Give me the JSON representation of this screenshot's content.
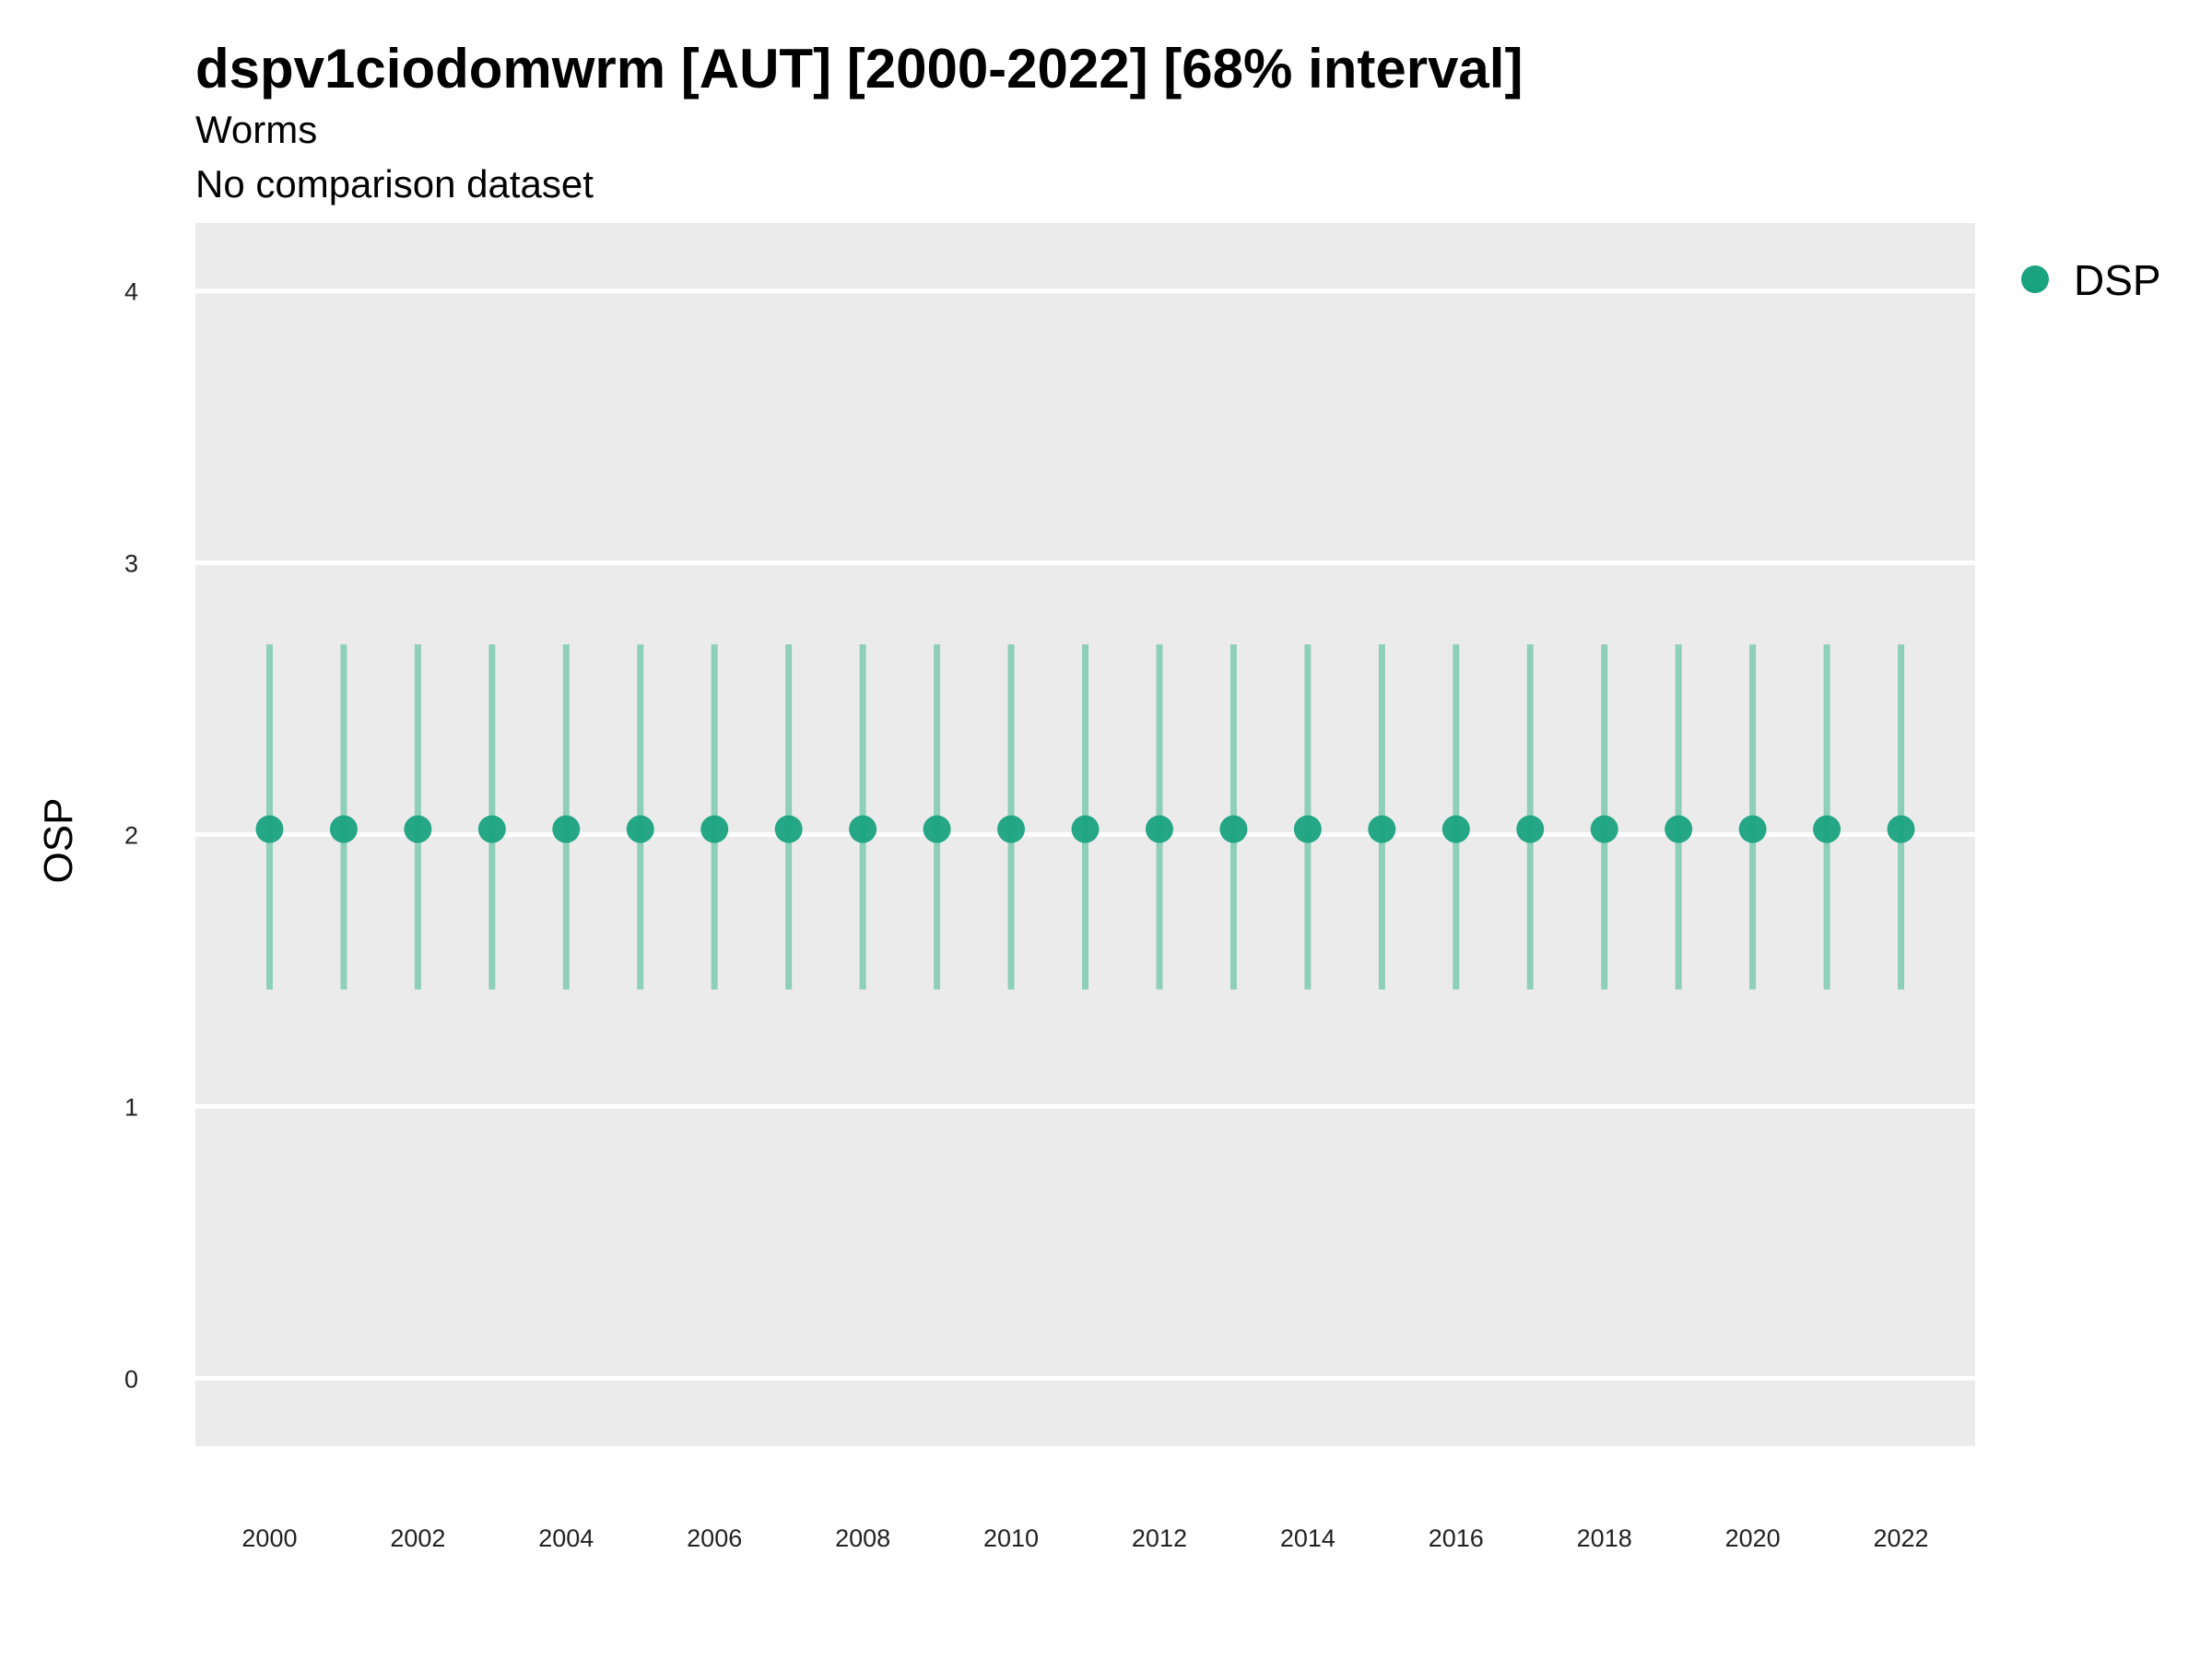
{
  "chart_data": {
    "type": "scatter",
    "title": "dspv1ciodomwrm [AUT] [2000-2022] [68% interval]",
    "subtitle": "Worms",
    "subtitle2": "No comparison dataset",
    "xlabel": "",
    "ylabel": "OSP",
    "ylim": [
      -0.25,
      4.25
    ],
    "xlim": [
      1999,
      2023
    ],
    "yticks": [
      0,
      1,
      2,
      3,
      4
    ],
    "xticks": [
      2000,
      2002,
      2004,
      2006,
      2008,
      2010,
      2012,
      2014,
      2016,
      2018,
      2020,
      2022
    ],
    "grid": true,
    "legend_position": "right",
    "series": [
      {
        "name": "DSP",
        "color": "#1aa37f",
        "interval_color": "#8ecfb9",
        "x": [
          2000,
          2001,
          2002,
          2003,
          2004,
          2005,
          2006,
          2007,
          2008,
          2009,
          2010,
          2011,
          2012,
          2013,
          2014,
          2015,
          2016,
          2017,
          2018,
          2019,
          2020,
          2021,
          2022
        ],
        "y": [
          2.02,
          2.02,
          2.02,
          2.02,
          2.02,
          2.02,
          2.02,
          2.02,
          2.02,
          2.02,
          2.02,
          2.02,
          2.02,
          2.02,
          2.02,
          2.02,
          2.02,
          2.02,
          2.02,
          2.02,
          2.02,
          2.02,
          2.02
        ],
        "lower": [
          1.43,
          1.43,
          1.43,
          1.43,
          1.43,
          1.43,
          1.43,
          1.43,
          1.43,
          1.43,
          1.43,
          1.43,
          1.43,
          1.43,
          1.43,
          1.43,
          1.43,
          1.43,
          1.43,
          1.43,
          1.43,
          1.43,
          1.43
        ],
        "upper": [
          2.7,
          2.7,
          2.7,
          2.7,
          2.7,
          2.7,
          2.7,
          2.7,
          2.7,
          2.7,
          2.7,
          2.7,
          2.7,
          2.7,
          2.7,
          2.7,
          2.7,
          2.7,
          2.7,
          2.7,
          2.7,
          2.7,
          2.7
        ]
      }
    ],
    "panel_color": "#ebebeb",
    "gridline_color": "#ffffff"
  }
}
